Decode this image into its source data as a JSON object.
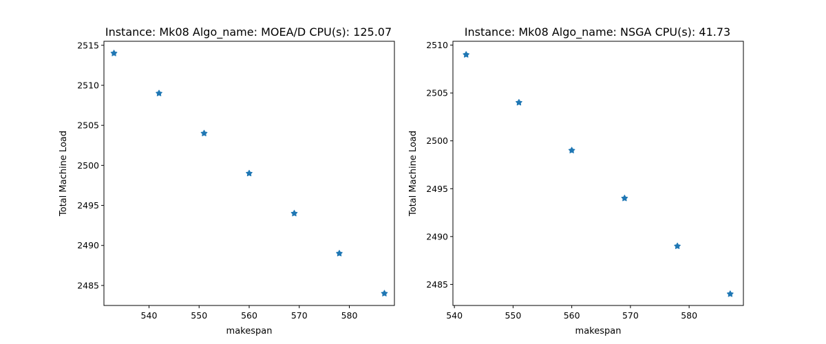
{
  "chart_data": [
    {
      "type": "scatter",
      "title": "Instance: Mk08 Algo_name: MOEA/D CPU(s): 125.07",
      "xlabel": "makespan",
      "ylabel": "Total Machine Load",
      "xlim": [
        531,
        589
      ],
      "ylim": [
        2482.5,
        2515.5
      ],
      "xticks": [
        540,
        550,
        560,
        570,
        580
      ],
      "yticks": [
        2485,
        2490,
        2495,
        2500,
        2505,
        2510,
        2515
      ],
      "grid": false,
      "marker_color": "#1f77b4",
      "x": [
        533,
        542,
        551,
        560,
        569,
        578,
        587
      ],
      "y": [
        2514,
        2509,
        2504,
        2499,
        2494,
        2489,
        2484
      ]
    },
    {
      "type": "scatter",
      "title": "Instance: Mk08 Algo_name: NSGA CPU(s): 41.73",
      "xlabel": "makespan",
      "ylabel": "Total Machine Load",
      "xlim": [
        539.75,
        589.25
      ],
      "ylim": [
        2482.8,
        2510.4
      ],
      "xticks": [
        540,
        550,
        560,
        570,
        580
      ],
      "yticks": [
        2485,
        2490,
        2495,
        2500,
        2505,
        2510
      ],
      "grid": false,
      "marker_color": "#1f77b4",
      "x": [
        542,
        551,
        560,
        569,
        578,
        587
      ],
      "y": [
        2509,
        2504,
        2499,
        2494,
        2489,
        2484
      ]
    }
  ]
}
